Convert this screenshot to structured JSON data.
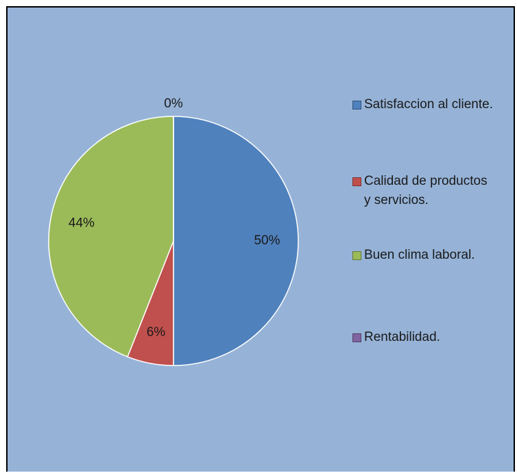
{
  "chart_data": {
    "type": "pie",
    "categories": [
      "Satisfaccion al cliente.",
      "Calidad de productos y servicios.",
      "Buen clima laboral.",
      "Rentabilidad."
    ],
    "values": [
      50,
      6,
      44,
      0
    ],
    "value_labels": [
      "50%",
      "6%",
      "44%",
      "0%"
    ],
    "colors": [
      "#4f81bd",
      "#c0504d",
      "#9bbb59",
      "#8064a2"
    ],
    "legend": "right"
  }
}
